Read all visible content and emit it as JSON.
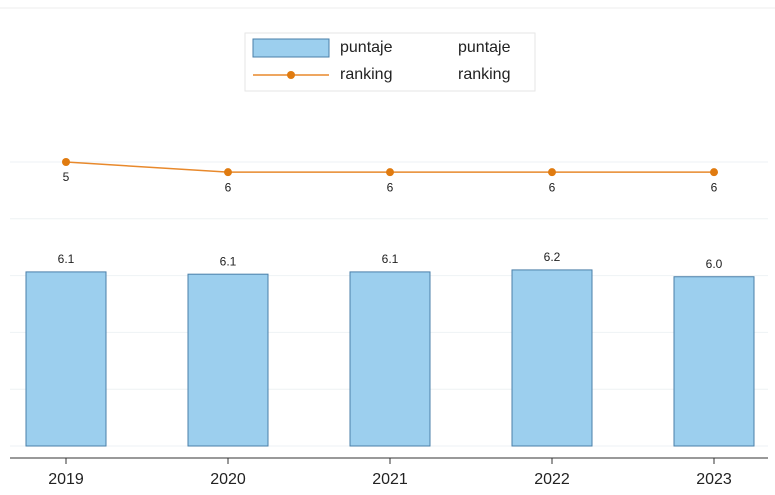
{
  "chart_data": {
    "type": "bar_line",
    "categories": [
      "2019",
      "2020",
      "2021",
      "2022",
      "2023"
    ],
    "series": [
      {
        "name": "puntaje",
        "type": "bar",
        "color": "#9ccfee",
        "edge_color": "#4a7fa8",
        "values": [
          6.13,
          6.05,
          6.13,
          6.2,
          5.96
        ],
        "value_labels": [
          "6.1",
          "6.1",
          "6.1",
          "6.2",
          "6.0"
        ]
      },
      {
        "name": "ranking",
        "type": "line",
        "axis": "y2",
        "color": "#e8892c",
        "values": [
          5,
          6,
          6,
          6,
          6
        ]
      }
    ],
    "ylim": [
      0,
      15
    ],
    "yticks": [
      0,
      2,
      4,
      6,
      8,
      10
    ],
    "y2lim": [
      -9,
      33
    ],
    "y2_reverse": true,
    "grid": true,
    "legend": "top"
  }
}
